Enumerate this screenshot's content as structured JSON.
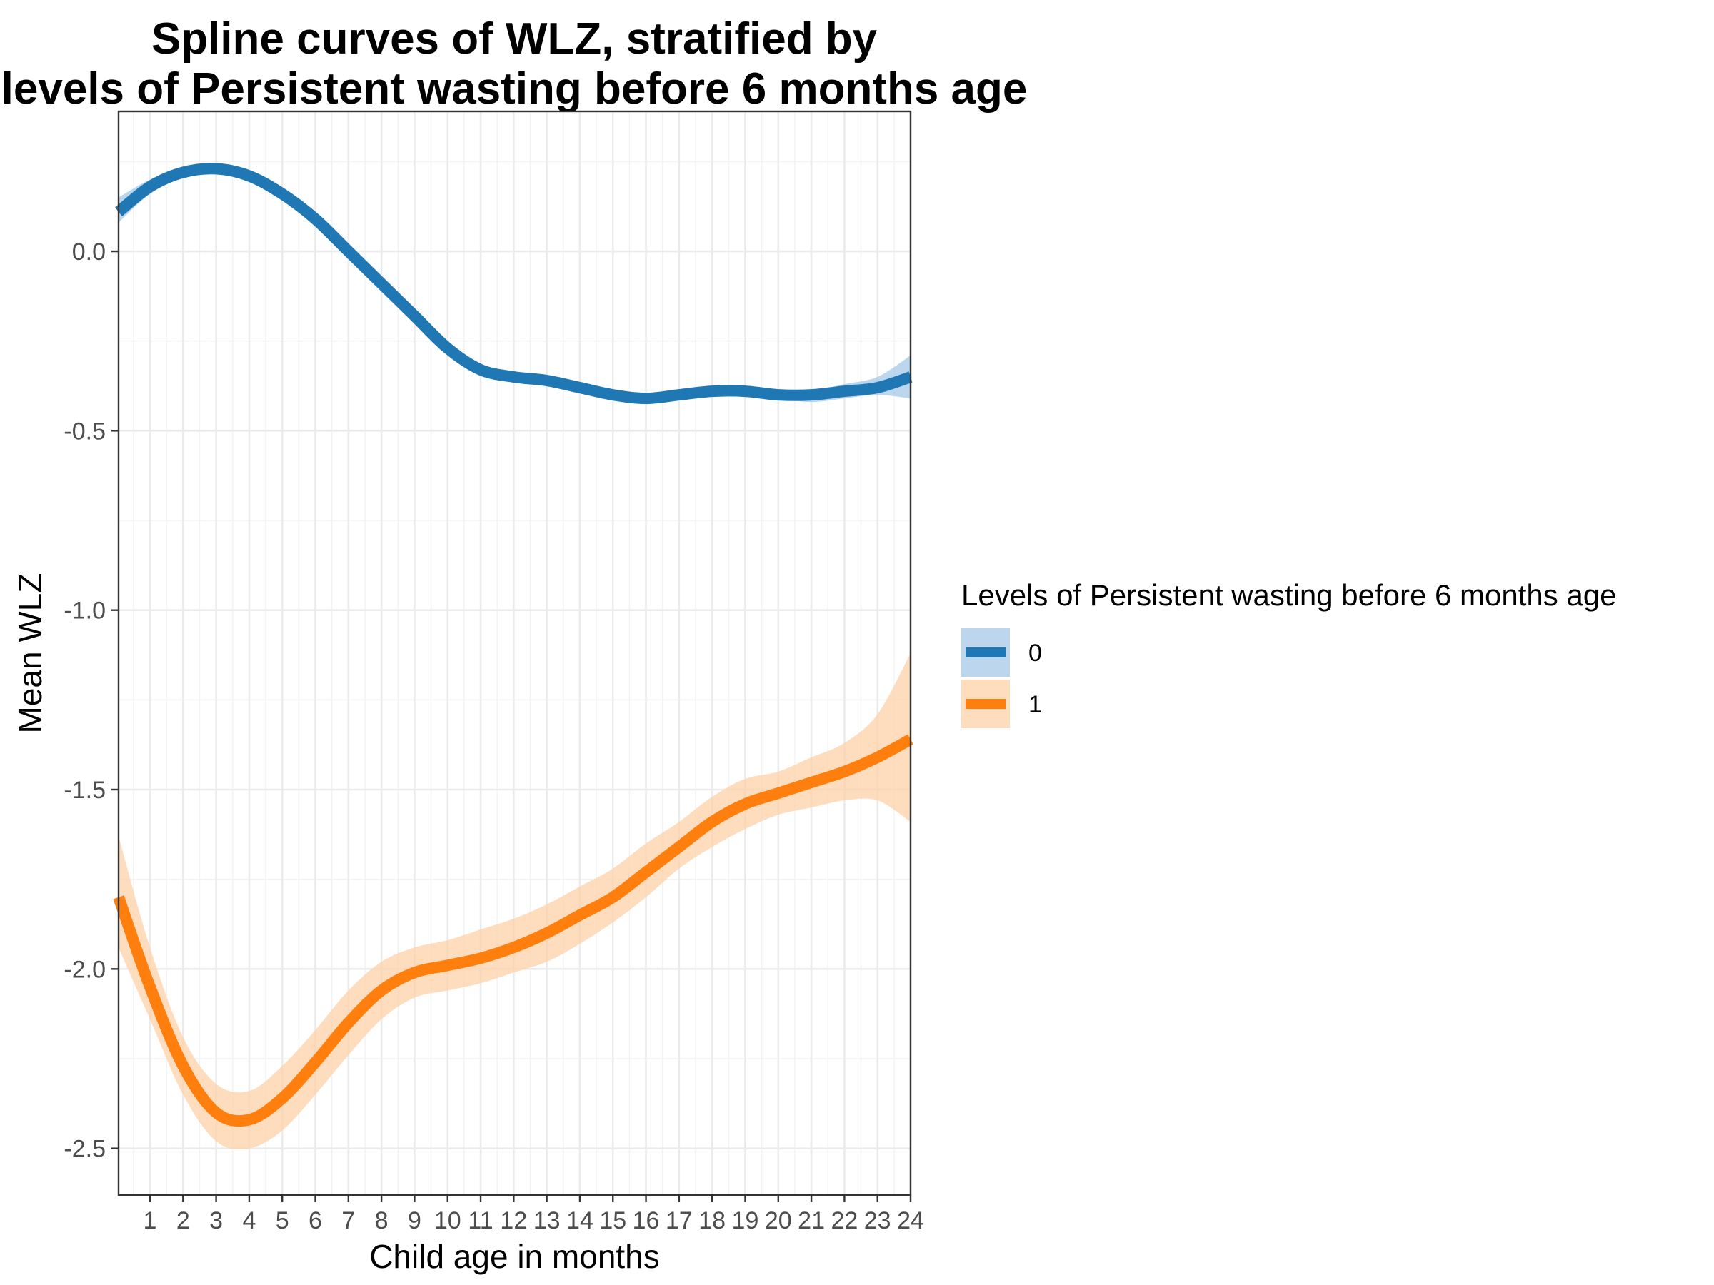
{
  "chart_data": {
    "type": "line",
    "title": "Spline curves of WLZ, stratified by\nlevels of Persistent wasting before 6 months age",
    "title_lines": [
      "Spline curves of WLZ, stratified by",
      "levels of Persistent wasting before 6 months age"
    ],
    "xlabel": "Child age in months",
    "ylabel": "Mean WLZ",
    "xlim": [
      0.05,
      24
    ],
    "ylim": [
      -2.63,
      0.39
    ],
    "x_ticks": [
      1,
      2,
      3,
      4,
      5,
      6,
      7,
      8,
      9,
      10,
      11,
      12,
      13,
      14,
      15,
      16,
      17,
      18,
      19,
      20,
      21,
      22,
      23,
      24
    ],
    "y_ticks": [
      0.0,
      -0.5,
      -1.0,
      -1.5,
      -2.0,
      -2.5
    ],
    "y_tick_labels": [
      "0.0",
      "-0.5",
      "-1.0",
      "-1.5",
      "-2.0",
      "-2.5"
    ],
    "grid": true,
    "legend": {
      "title": "Levels of Persistent wasting before 6 months age",
      "position": "right",
      "entries": [
        "0",
        "1"
      ]
    },
    "series": [
      {
        "name": "0",
        "color": "#1f77b4",
        "band_color": "#a6c8e8",
        "x": [
          0.05,
          1,
          2,
          3,
          4,
          5,
          6,
          7,
          8,
          9,
          10,
          11,
          12,
          13,
          14,
          15,
          16,
          17,
          18,
          19,
          20,
          21,
          22,
          23,
          24
        ],
        "y": [
          0.11,
          0.18,
          0.22,
          0.23,
          0.21,
          0.16,
          0.09,
          0.0,
          -0.09,
          -0.18,
          -0.27,
          -0.33,
          -0.35,
          -0.36,
          -0.38,
          -0.4,
          -0.41,
          -0.4,
          -0.39,
          -0.39,
          -0.4,
          -0.4,
          -0.39,
          -0.38,
          -0.35
        ],
        "lower": [
          0.08,
          0.16,
          0.21,
          0.22,
          0.2,
          0.15,
          0.08,
          -0.01,
          -0.1,
          -0.19,
          -0.28,
          -0.34,
          -0.36,
          -0.37,
          -0.39,
          -0.41,
          -0.42,
          -0.41,
          -0.4,
          -0.4,
          -0.41,
          -0.42,
          -0.41,
          -0.4,
          -0.41
        ],
        "upper": [
          0.15,
          0.2,
          0.23,
          0.24,
          0.22,
          0.17,
          0.1,
          0.01,
          -0.08,
          -0.17,
          -0.26,
          -0.32,
          -0.34,
          -0.35,
          -0.37,
          -0.39,
          -0.4,
          -0.39,
          -0.38,
          -0.38,
          -0.39,
          -0.39,
          -0.37,
          -0.35,
          -0.29
        ]
      },
      {
        "name": "1",
        "color": "#ff7f0e",
        "band_color": "#fdd0a8",
        "x": [
          0.05,
          1,
          2,
          3,
          4,
          5,
          6,
          7,
          8,
          9,
          10,
          11,
          12,
          13,
          14,
          15,
          16,
          17,
          18,
          19,
          20,
          21,
          22,
          23,
          24
        ],
        "y": [
          -1.8,
          -2.05,
          -2.27,
          -2.4,
          -2.42,
          -2.36,
          -2.26,
          -2.15,
          -2.06,
          -2.01,
          -1.99,
          -1.97,
          -1.94,
          -1.9,
          -1.85,
          -1.8,
          -1.73,
          -1.66,
          -1.59,
          -1.54,
          -1.51,
          -1.48,
          -1.45,
          -1.41,
          -1.36
        ],
        "lower": [
          -1.94,
          -2.14,
          -2.35,
          -2.48,
          -2.5,
          -2.45,
          -2.35,
          -2.24,
          -2.14,
          -2.08,
          -2.06,
          -2.04,
          -2.01,
          -1.98,
          -1.93,
          -1.87,
          -1.8,
          -1.72,
          -1.66,
          -1.61,
          -1.57,
          -1.55,
          -1.53,
          -1.53,
          -1.59
        ],
        "upper": [
          -1.63,
          -1.94,
          -2.19,
          -2.32,
          -2.34,
          -2.27,
          -2.17,
          -2.06,
          -1.98,
          -1.94,
          -1.92,
          -1.89,
          -1.86,
          -1.82,
          -1.77,
          -1.72,
          -1.65,
          -1.59,
          -1.52,
          -1.47,
          -1.45,
          -1.41,
          -1.37,
          -1.29,
          -1.12
        ]
      }
    ]
  }
}
